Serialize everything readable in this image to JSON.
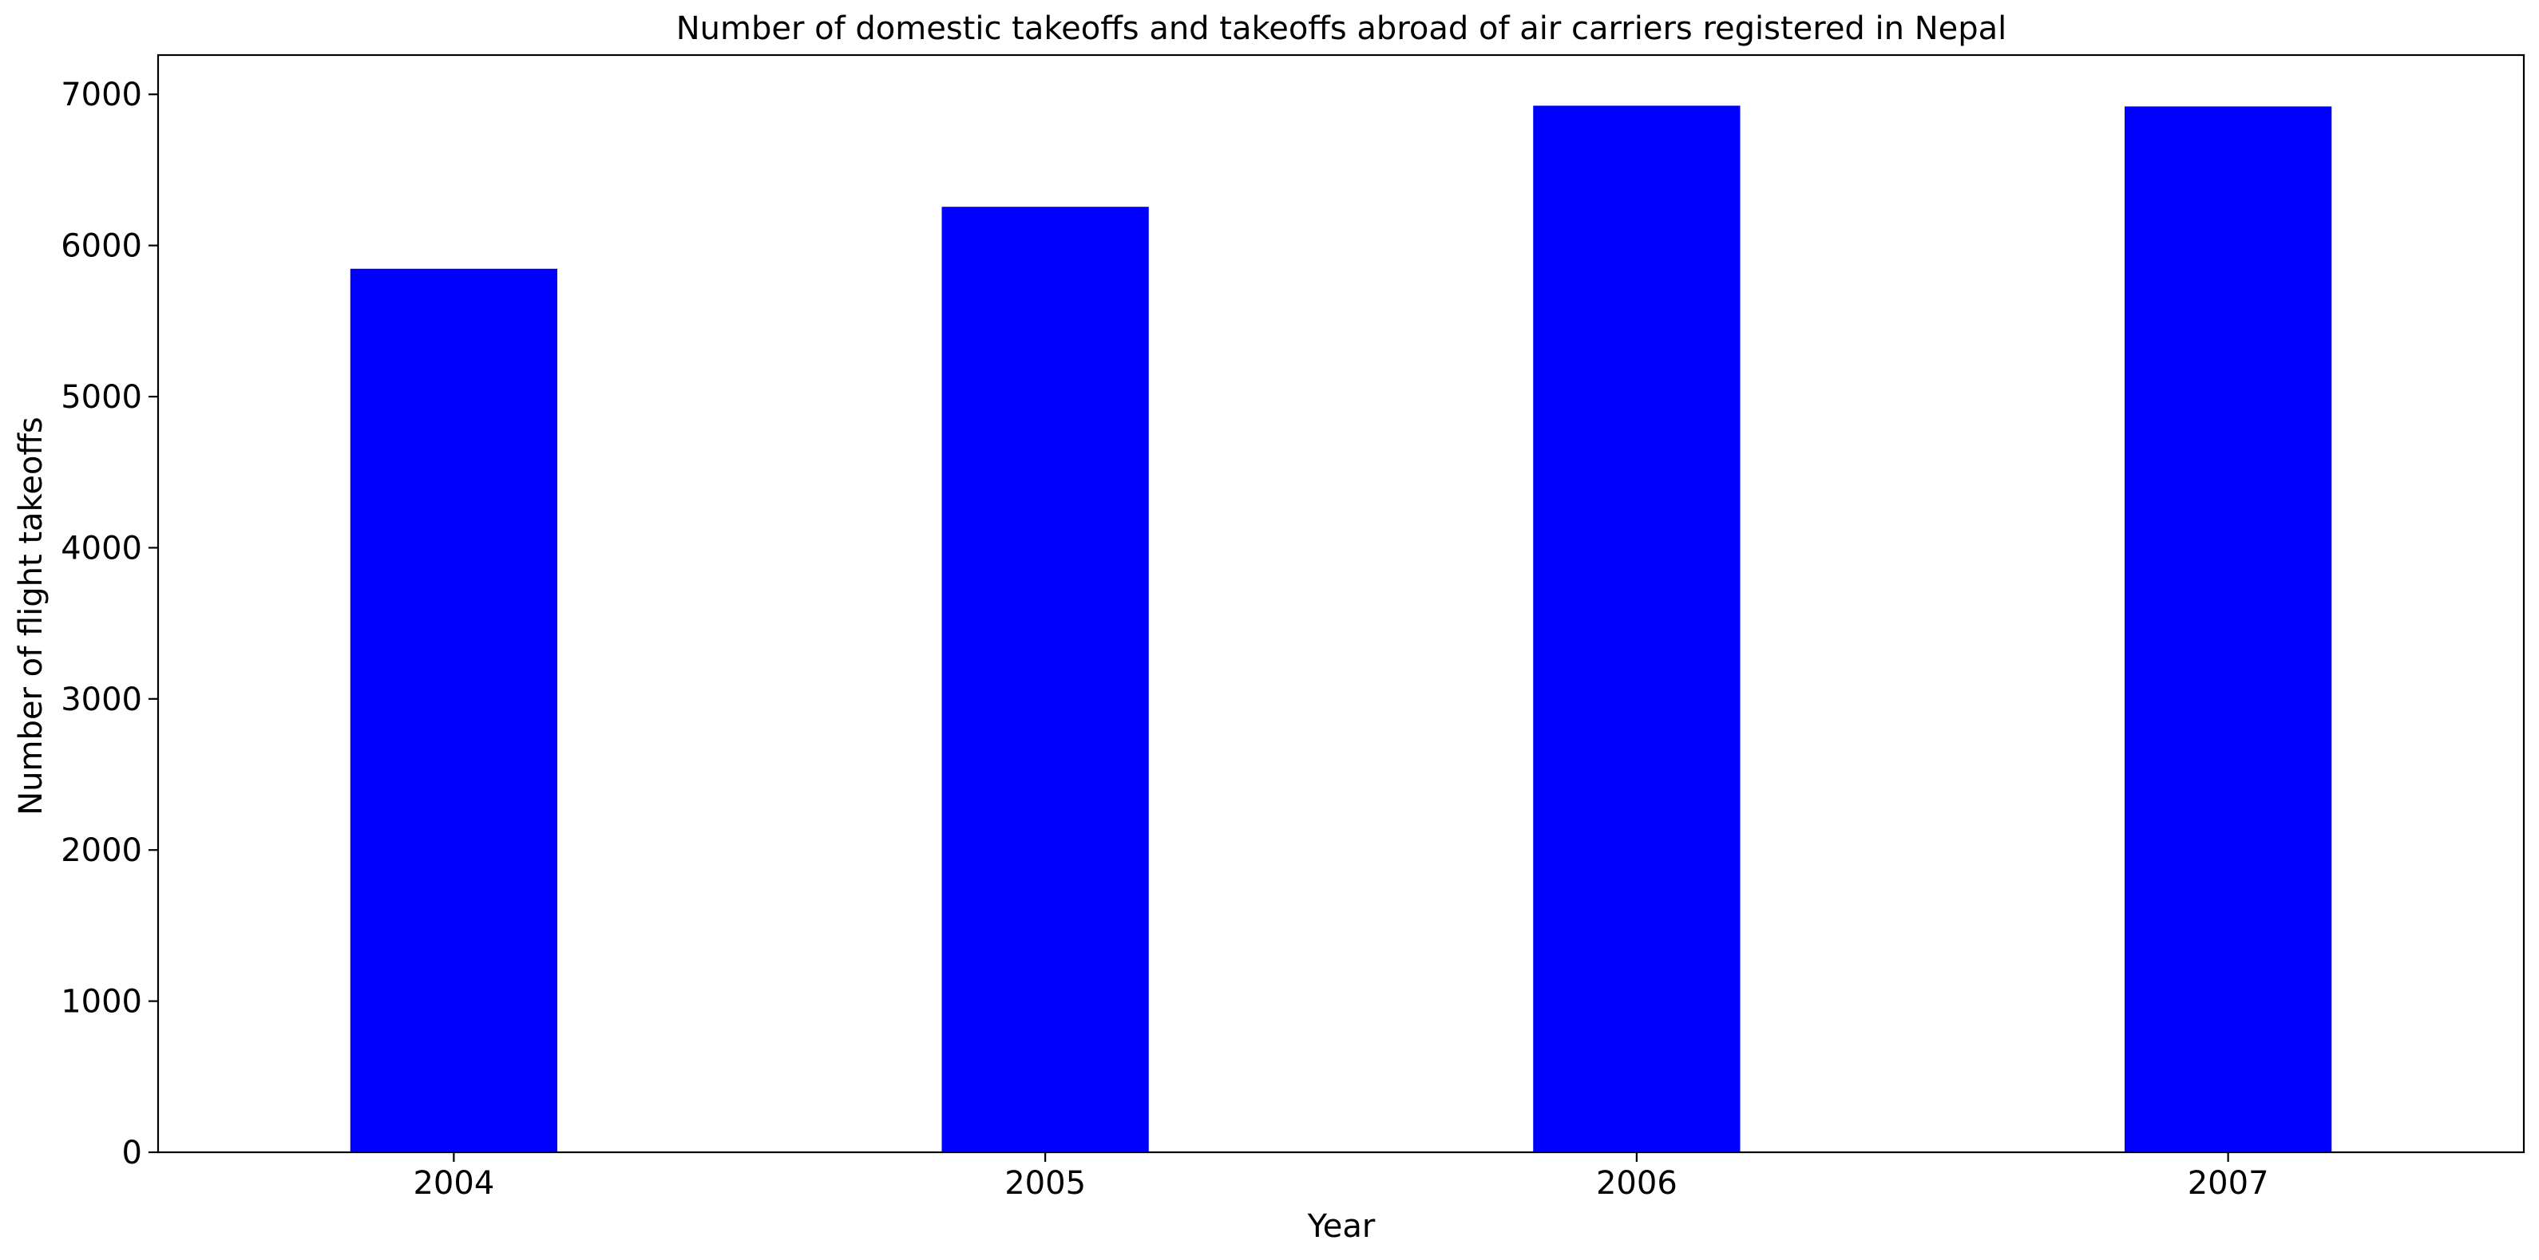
{
  "chart_data": {
    "type": "bar",
    "title": "Number of domestic takeoffs and takeoffs abroad of air carriers registered in Nepal",
    "xlabel": "Year",
    "ylabel": "Number of flight takeoffs",
    "categories": [
      "2004",
      "2005",
      "2006",
      "2007"
    ],
    "values": [
      5846,
      6256,
      6925,
      6920
    ],
    "ylim": [
      0,
      7260
    ],
    "yticks": [
      0,
      1000,
      2000,
      3000,
      4000,
      5000,
      6000,
      7000
    ],
    "ytick_labels": [
      "0",
      "1000",
      "2000",
      "3000",
      "4000",
      "5000",
      "6000",
      "7000"
    ],
    "bar_color": "#0000ff",
    "grid": false,
    "legend": "none"
  }
}
